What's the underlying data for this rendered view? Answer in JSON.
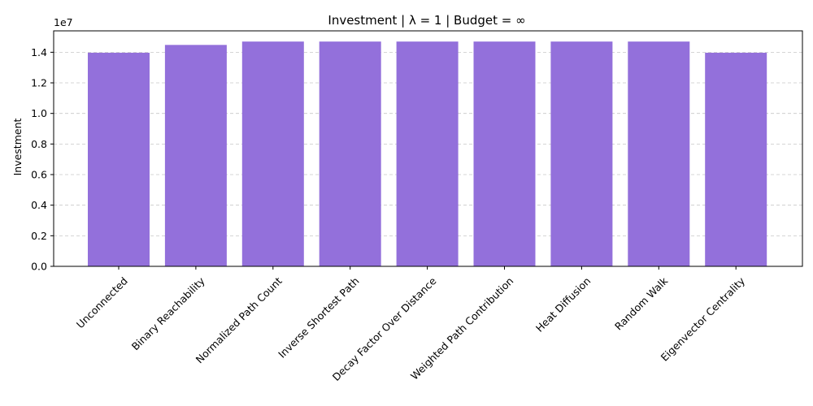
{
  "chart_data": {
    "type": "bar",
    "title": "Investment | λ = 1 | Budget = ∞",
    "xlabel": "",
    "ylabel": "Investment",
    "y_offset_label": "1e7",
    "categories": [
      "Unconnected",
      "Binary Reachability",
      "Normalized Path Count",
      "Inverse Shortest Path",
      "Decay Factor Over Distance",
      "Weighted Path Contribution",
      "Heat Diffusion",
      "Random Walk",
      "Eigenvector Centrality"
    ],
    "values": [
      13970000,
      14480000,
      14700000,
      14700000,
      14700000,
      14700000,
      14700000,
      14700000,
      13970000
    ],
    "ylim": [
      0,
      15400000
    ],
    "yticks": [
      0,
      2000000,
      4000000,
      6000000,
      8000000,
      10000000,
      12000000,
      14000000
    ],
    "ytick_labels": [
      "0.0",
      "0.2",
      "0.4",
      "0.6",
      "0.8",
      "1.0",
      "1.2",
      "1.4"
    ],
    "bar_color": "#9370db",
    "grid": "y-dashed",
    "xtick_rotation_deg": 45
  }
}
